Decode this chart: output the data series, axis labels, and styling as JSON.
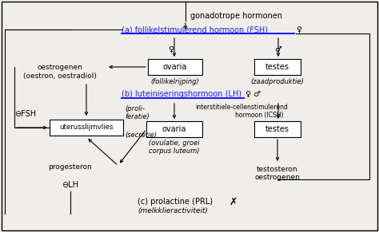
{
  "bg_color": "#f0eeea",
  "box_color": "#ffffff",
  "box_edge": "#000000",
  "line_color": "#000000",
  "blue_line_color": "#1a1aff",
  "text_color": "#000000",
  "title": "gonadotrope hormonen",
  "fsh_label": "(a) follikelstimulerend hormoon (FSH)",
  "lh_label": "(b) luteiniseringshormoon (LH)",
  "prl_label": "(c) prolactine (PRL)",
  "prl_sub": "(melkklieractiviteit)",
  "box1_label": "ovaria",
  "box1_sub": "(follikelrijping)",
  "box2_label": "testes",
  "box2_sub": "(zaadproduktie)",
  "box3_label": "ovaria",
  "box3_sub": "(ovulatie, groei\ncorpus luteum)",
  "box4_label": "testes",
  "box5_label": "uterusslĳmvlies",
  "icsh_label": "interstitiele-cellenstimulerend",
  "icsh_label2": "hormoon (ICSH)",
  "oestrogenen_label": "oestrogenen\n(oestron, oestradiol)",
  "proliferatie_label": "(proli-\nferatie)",
  "secretie_label": "(secretie)",
  "progesteron_label": "progesteron",
  "testosteron_label": "testosteron\noestrogenen",
  "fsh_neg_label": "⊖FSH",
  "lh_neg_label": "⊖LH"
}
